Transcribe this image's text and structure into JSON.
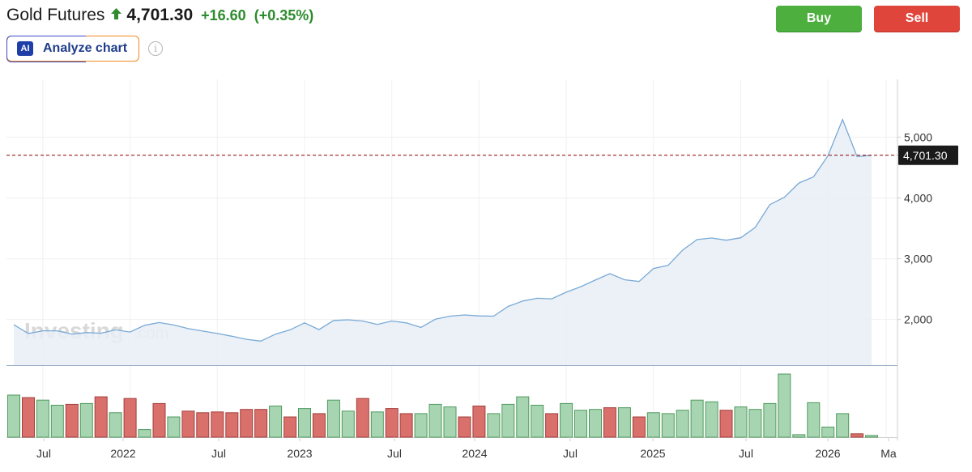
{
  "header": {
    "title": "Gold Futures",
    "price": "4,701.30",
    "change": "+16.60",
    "change_pct": "(+0.35%)"
  },
  "actions": {
    "buy_label": "Buy",
    "sell_label": "Sell",
    "analyze_label": "Analyze chart",
    "ai_badge": "AI",
    "info_icon": "i"
  },
  "watermark": {
    "brand": "Investing",
    "suffix": ".com"
  },
  "colors": {
    "line": "#7aaad6",
    "area": "#e8eef6",
    "volume_up": "#a8d5b1",
    "volume_up_border": "#4e9a5e",
    "volume_down": "#d9706c",
    "volume_down_border": "#a33f3b",
    "price_line": "#8b0000",
    "buy": "#4caf3e",
    "sell": "#e0453b"
  },
  "chart_data": {
    "type": "area",
    "interval": "monthly",
    "x_tick_labels": [
      "Jul",
      "2022",
      "Jul",
      "2023",
      "Jul",
      "2024",
      "Jul",
      "2025",
      "Jul",
      "2026",
      "Ma"
    ],
    "y_tick_labels": [
      "2,000",
      "3,000",
      "4,000",
      "5,000"
    ],
    "y_ticks": [
      2000,
      3000,
      4000,
      5000
    ],
    "ylim": [
      1250,
      5950
    ],
    "current_price_label": "4,701.30",
    "current_price": 4701.3,
    "x": [
      "2021-05",
      "2021-06",
      "2021-07",
      "2021-08",
      "2021-09",
      "2021-10",
      "2021-11",
      "2021-12",
      "2022-01",
      "2022-02",
      "2022-03",
      "2022-04",
      "2022-05",
      "2022-06",
      "2022-07",
      "2022-08",
      "2022-09",
      "2022-10",
      "2022-11",
      "2022-12",
      "2023-01",
      "2023-02",
      "2023-03",
      "2023-04",
      "2023-05",
      "2023-06",
      "2023-07",
      "2023-08",
      "2023-09",
      "2023-10",
      "2023-11",
      "2023-12",
      "2024-01",
      "2024-02",
      "2024-03",
      "2024-04",
      "2024-05",
      "2024-06",
      "2024-07",
      "2024-08",
      "2024-09",
      "2024-10",
      "2024-11",
      "2024-12",
      "2025-01",
      "2025-02",
      "2025-03",
      "2025-04",
      "2025-05",
      "2025-06",
      "2025-07",
      "2025-08",
      "2025-09",
      "2025-10",
      "2025-11",
      "2025-12",
      "2026-01",
      "2026-02",
      "2026-03",
      "2026-04"
    ],
    "close": [
      1915,
      1770,
      1815,
      1815,
      1760,
      1785,
      1775,
      1830,
      1795,
      1905,
      1950,
      1910,
      1850,
      1810,
      1770,
      1725,
      1675,
      1645,
      1760,
      1830,
      1945,
      1835,
      1985,
      1995,
      1975,
      1920,
      1975,
      1945,
      1870,
      2005,
      2055,
      2075,
      2060,
      2055,
      2215,
      2305,
      2350,
      2340,
      2450,
      2540,
      2650,
      2755,
      2655,
      2625,
      2840,
      2890,
      3140,
      3315,
      3340,
      3305,
      3345,
      3515,
      3890,
      4010,
      4245,
      4345,
      4695,
      5290,
      4680,
      4701.3
    ],
    "volume_direction": [
      "up",
      "down",
      "up",
      "up",
      "down",
      "up",
      "down",
      "up",
      "down",
      "up",
      "down",
      "up",
      "down",
      "down",
      "down",
      "down",
      "down",
      "down",
      "up",
      "down",
      "up",
      "down",
      "up",
      "up",
      "down",
      "up",
      "down",
      "down",
      "up",
      "up",
      "up",
      "down",
      "down",
      "up",
      "up",
      "up",
      "up",
      "down",
      "up",
      "up",
      "up",
      "down",
      "up",
      "down",
      "up",
      "up",
      "up",
      "up",
      "up",
      "down",
      "up",
      "up",
      "up",
      "up",
      "up",
      "up",
      "up",
      "up",
      "down",
      "up"
    ],
    "volume": [
      1.0,
      0.94,
      0.88,
      0.76,
      0.78,
      0.8,
      0.96,
      0.58,
      0.92,
      0.18,
      0.8,
      0.48,
      0.62,
      0.58,
      0.6,
      0.58,
      0.66,
      0.66,
      0.74,
      0.48,
      0.68,
      0.56,
      0.88,
      0.62,
      0.92,
      0.6,
      0.68,
      0.56,
      0.56,
      0.78,
      0.72,
      0.48,
      0.74,
      0.56,
      0.78,
      0.96,
      0.76,
      0.56,
      0.8,
      0.64,
      0.66,
      0.7,
      0.7,
      0.48,
      0.58,
      0.56,
      0.64,
      0.88,
      0.84,
      0.64,
      0.72,
      0.66,
      0.8,
      1.5,
      0.06,
      0.82,
      0.24,
      0.56,
      0.08,
      0.04
    ]
  }
}
